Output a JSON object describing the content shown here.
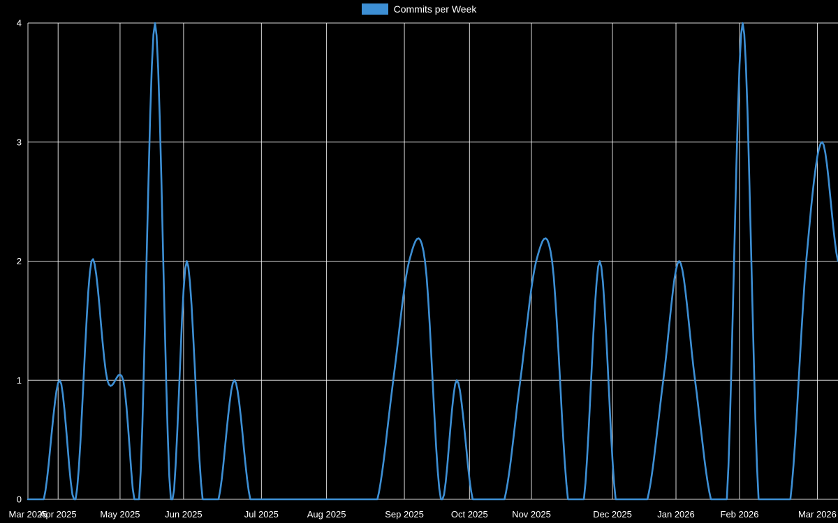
{
  "chart_data": {
    "type": "line",
    "title": "",
    "legend_label": "Commits per Week",
    "series": [
      {
        "name": "Commits per Week",
        "color": "#3d8fd4",
        "values": [
          0,
          0,
          1,
          0,
          2,
          1,
          1,
          0,
          4,
          0,
          2,
          0,
          0,
          1,
          0,
          0,
          0,
          0,
          0,
          0,
          0,
          0,
          0,
          1,
          2,
          2,
          0,
          1,
          0,
          0,
          0,
          1,
          2,
          2,
          0,
          0,
          2,
          0,
          0,
          0,
          1,
          2,
          1,
          0,
          0,
          4,
          0,
          0,
          0,
          2,
          3,
          2
        ]
      }
    ],
    "x_ticks": [
      {
        "label": "Mar 2025",
        "week": 0
      },
      {
        "label": "Apr 2025",
        "week": 1.9
      },
      {
        "label": "May 2025",
        "week": 5.8
      },
      {
        "label": "Jun 2025",
        "week": 9.8
      },
      {
        "label": "Jul 2025",
        "week": 14.7
      },
      {
        "label": "Aug 2025",
        "week": 18.8
      },
      {
        "label": "Sep 2025",
        "week": 23.7
      },
      {
        "label": "Oct 2025",
        "week": 27.8
      },
      {
        "label": "Nov 2025",
        "week": 31.7
      },
      {
        "label": "Dec 2025",
        "week": 36.8
      },
      {
        "label": "Jan 2026",
        "week": 40.8
      },
      {
        "label": "Feb 2026",
        "week": 44.8
      },
      {
        "label": "Mar 2026",
        "week": 49.7
      }
    ],
    "y_ticks": [
      0,
      1,
      2,
      3,
      4
    ],
    "ylim": [
      0,
      4
    ],
    "grid_on": true,
    "legend_position": "top-center",
    "colors": {
      "background": "#000000",
      "grid": "#ffffff",
      "text": "#ffffff",
      "line": "#3d8fd4"
    }
  }
}
